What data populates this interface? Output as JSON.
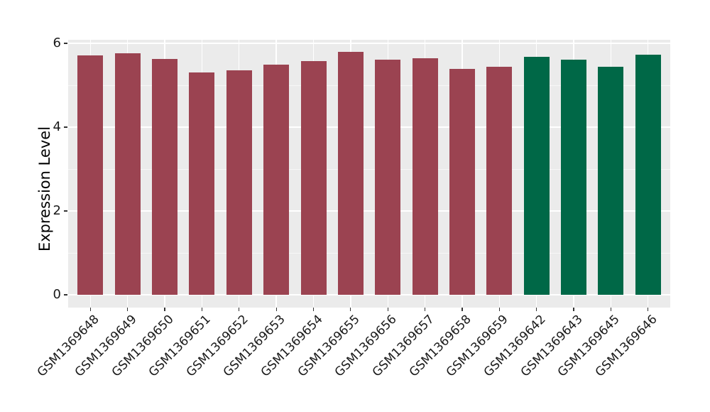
{
  "chart_data": {
    "type": "bar",
    "title": "",
    "xlabel": "",
    "ylabel": "Expression Level",
    "ylim": [
      0,
      6.1
    ],
    "yticks": [
      0,
      2,
      4,
      6
    ],
    "ytick_labels": [
      "0",
      "2",
      "4",
      "6"
    ],
    "yticks_minor": [
      1,
      3,
      5
    ],
    "categories": [
      "GSM1369648",
      "GSM1369649",
      "GSM1369650",
      "GSM1369651",
      "GSM1369652",
      "GSM1369653",
      "GSM1369654",
      "GSM1369655",
      "GSM1369656",
      "GSM1369657",
      "GSM1369658",
      "GSM1369659",
      "GSM1369642",
      "GSM1369643",
      "GSM1369645",
      "GSM1369646"
    ],
    "values": [
      5.71,
      5.77,
      5.62,
      5.31,
      5.36,
      5.5,
      5.57,
      5.79,
      5.61,
      5.65,
      5.39,
      5.44,
      5.68,
      5.61,
      5.44,
      5.73
    ],
    "bar_colors": [
      "#9B4351",
      "#9B4351",
      "#9B4351",
      "#9B4351",
      "#9B4351",
      "#9B4351",
      "#9B4351",
      "#9B4351",
      "#9B4351",
      "#9B4351",
      "#9B4351",
      "#9B4351",
      "#006847",
      "#006847",
      "#006847",
      "#006847"
    ],
    "groups": [
      "group-1",
      "group-1",
      "group-1",
      "group-1",
      "group-1",
      "group-1",
      "group-1",
      "group-1",
      "group-1",
      "group-1",
      "group-1",
      "group-1",
      "group-2",
      "group-2",
      "group-2",
      "group-2"
    ],
    "palette": {
      "group-1": "#9B4351",
      "group-2": "#006847"
    },
    "legend_position": "none",
    "grid": "on",
    "panel_background": "#EBEBEB",
    "gridline_color": "#FFFFFF",
    "tick_mark_color": "#333333",
    "tick_text_color": "#1A1A1A"
  }
}
